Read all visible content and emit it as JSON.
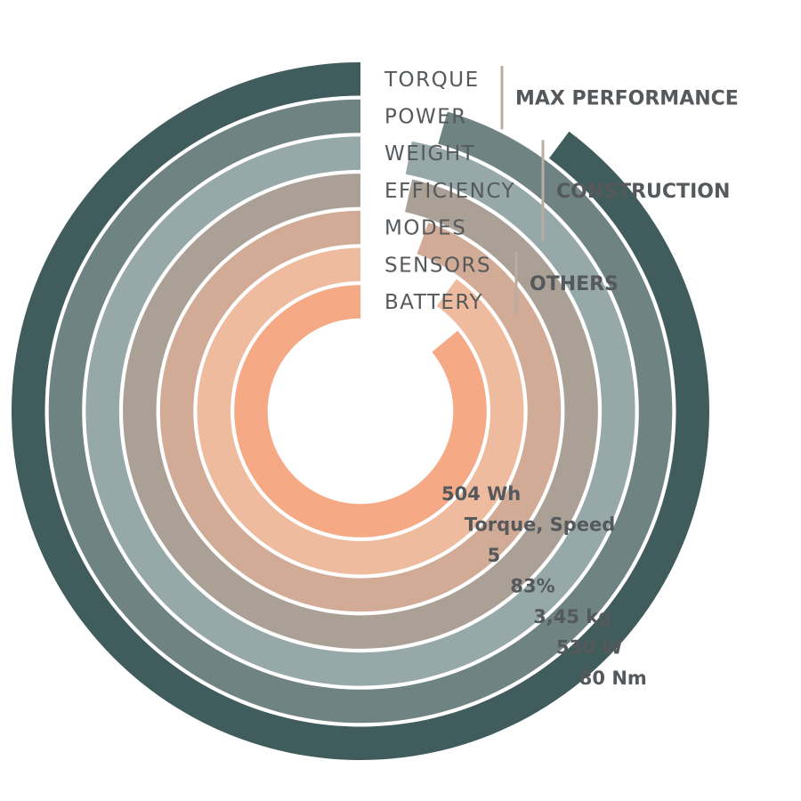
{
  "chart_data": {
    "type": "radial-bar",
    "series": [
      {
        "category": "TORQUE",
        "group": "MAX PERFORMANCE",
        "value_label": "80 Nm",
        "fraction": 0.898,
        "color": "#415c5d"
      },
      {
        "category": "POWER",
        "group": "MAX PERFORMANCE",
        "value_label": "530 W",
        "fraction": 0.955,
        "color": "#6f8382"
      },
      {
        "category": "WEIGHT",
        "group": "CONSTRUCTION",
        "value_label": "3,45 kg",
        "fraction": 0.97,
        "color": "#97a8a9"
      },
      {
        "category": "EFFICIENCY",
        "group": "CONSTRUCTION",
        "value_label": "83%",
        "fraction": 0.965,
        "color": "#aba096"
      },
      {
        "category": "MODES",
        "group": "CONSTRUCTION",
        "value_label": "5",
        "fraction": 0.945,
        "color": "#d1ab95"
      },
      {
        "category": "SENSORS",
        "group": "OTHERS",
        "value_label": "Torque, Speed",
        "fraction": 0.9,
        "color": "#efbb9e"
      },
      {
        "category": "BATTERY",
        "group": "OTHERS",
        "value_label": "504 Wh",
        "fraction": 0.86,
        "color": "#f5a985"
      }
    ],
    "groups": [
      "MAX PERFORMANCE",
      "CONSTRUCTION",
      "OTHERS"
    ],
    "remainder_color": "#f4f1ef",
    "max_fraction": 0.9
  }
}
